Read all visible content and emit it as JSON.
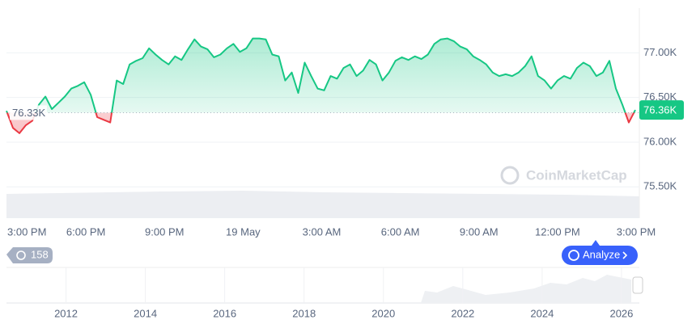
{
  "chart_data": {
    "type": "line",
    "ylim": [
      75150,
      77500
    ],
    "yticks": [
      {
        "value": 75500,
        "label": "75.50K"
      },
      {
        "value": 76000,
        "label": "76.00K"
      },
      {
        "value": 76500,
        "label": "76.50K"
      },
      {
        "value": 77000,
        "label": "77.00K"
      }
    ],
    "x_labels": [
      "3:00 PM",
      "6:00 PM",
      "9:00 PM",
      "19 May",
      "3:00 AM",
      "6:00 AM",
      "9:00 AM",
      "12:00 PM",
      "3:00 PM"
    ],
    "values": [
      76350,
      76160,
      76100,
      76190,
      76240,
      76420,
      76510,
      76370,
      76440,
      76510,
      76600,
      76630,
      76670,
      76530,
      76280,
      76250,
      76220,
      76690,
      76650,
      76870,
      76910,
      76940,
      77050,
      76980,
      76920,
      76870,
      76960,
      76920,
      77040,
      77150,
      77070,
      77040,
      76950,
      76980,
      77050,
      77100,
      77010,
      77050,
      77160,
      77160,
      77150,
      76980,
      76960,
      76690,
      76780,
      76550,
      76890,
      76740,
      76600,
      76580,
      76740,
      76710,
      76830,
      76870,
      76740,
      76800,
      76920,
      76870,
      76690,
      76780,
      76910,
      76950,
      76920,
      76960,
      76930,
      76980,
      77100,
      77150,
      77160,
      77130,
      77070,
      77040,
      76960,
      76920,
      76870,
      76780,
      76740,
      76760,
      76740,
      76780,
      76850,
      76960,
      76740,
      76690,
      76600,
      76690,
      76740,
      76710,
      76830,
      76890,
      76850,
      76740,
      76780,
      76910,
      76600,
      76420,
      76220,
      76360
    ],
    "up_color": "#16c784",
    "down_color": "#ea3943",
    "baseline": {
      "value": 76330,
      "label": "76.33K"
    },
    "current_price": {
      "value": 76360,
      "label": "76.36K"
    },
    "grid": true,
    "watermark": "CoinMarketCap",
    "history_count": "158",
    "analyze_button": "Analyze",
    "overview": {
      "xlim": [
        2010.5,
        2026.45
      ],
      "xticks": [
        2012,
        2014,
        2016,
        2018,
        2020,
        2022,
        2024,
        2026
      ]
    }
  }
}
